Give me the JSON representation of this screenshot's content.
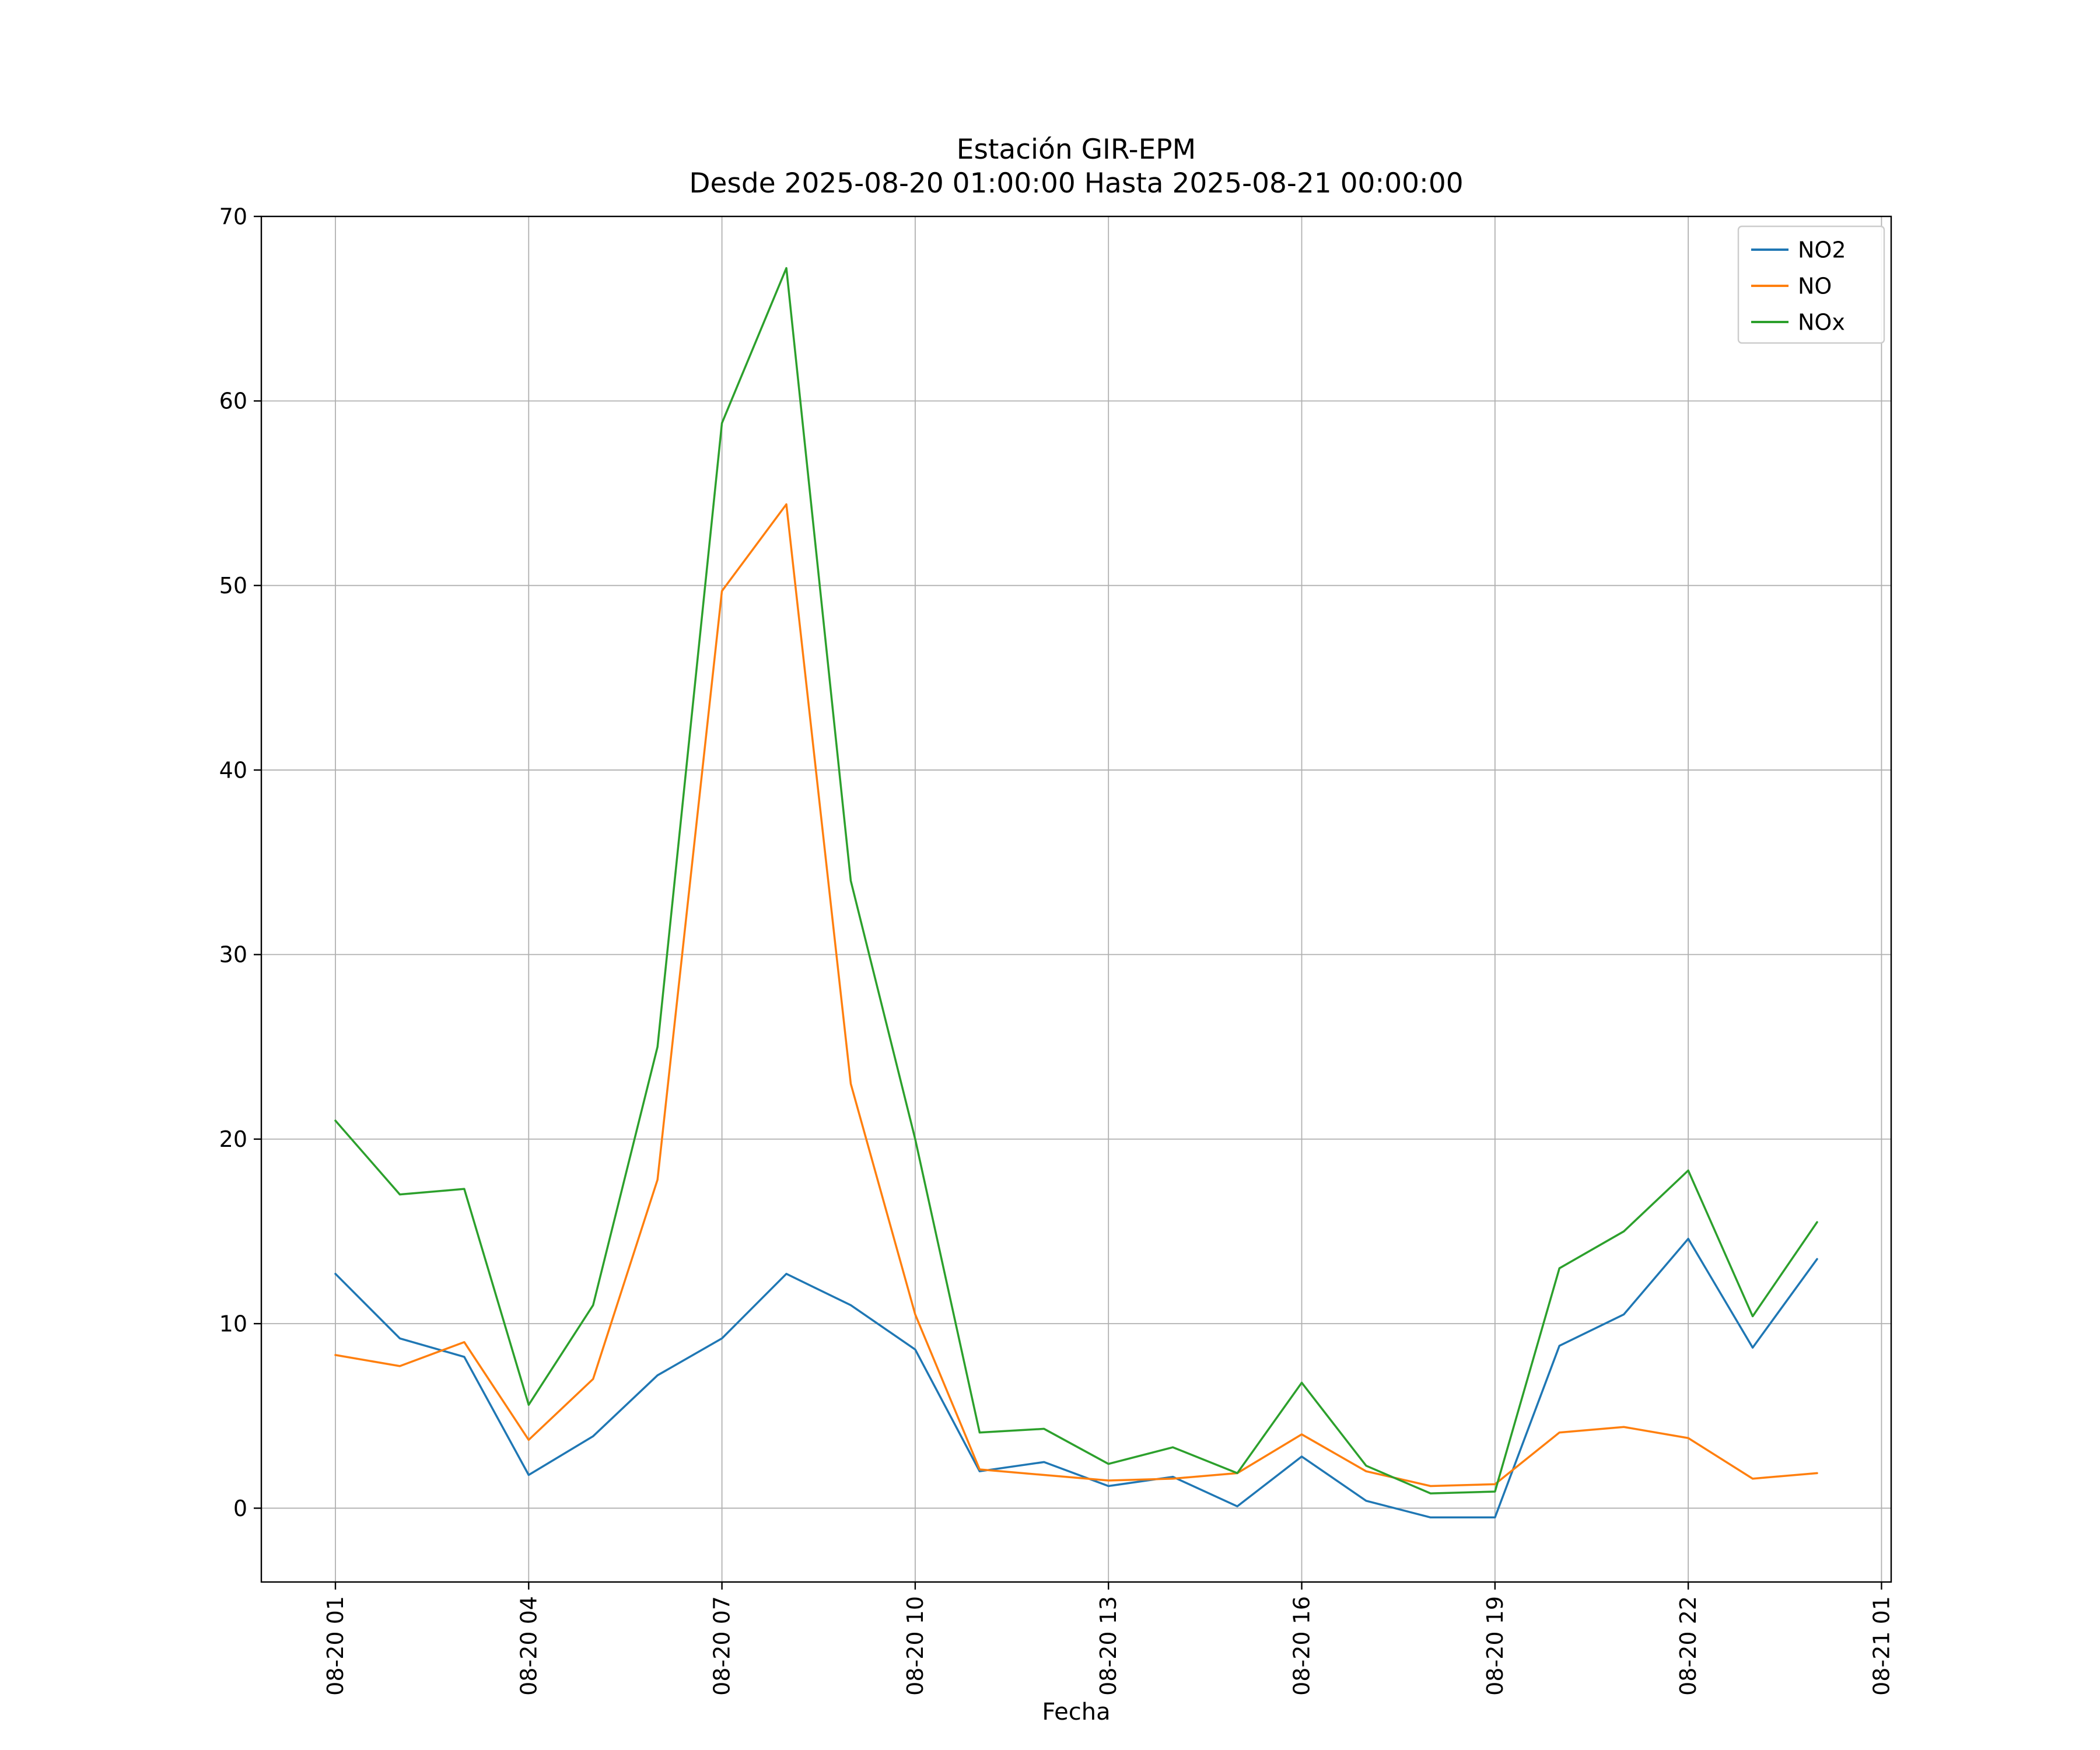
{
  "figure": {
    "title_line1": "Estación GIR-EPM",
    "title_line2": "Desde 2025-08-20 01:00:00 Hasta 2025-08-21 00:00:00",
    "xlabel": "Fecha"
  },
  "chart_data": {
    "type": "line",
    "title": "Estación GIR-EPM",
    "subtitle": "Desde 2025-08-20 01:00:00 Hasta 2025-08-21 00:00:00",
    "xlabel": "Fecha",
    "ylabel": "",
    "grid": true,
    "legend_position": "upper right",
    "grid_color": "#b0b0b0",
    "axis_color": "#000000",
    "xlim": [
      -0.15,
      25.15
    ],
    "ylim": [
      -4.0,
      70.0
    ],
    "x_hours": [
      1,
      2,
      3,
      4,
      5,
      6,
      7,
      8,
      9,
      10,
      11,
      12,
      13,
      14,
      15,
      16,
      17,
      18,
      19,
      20,
      21,
      22,
      23,
      24
    ],
    "series": [
      {
        "name": "NO2",
        "color": "#1f77b4",
        "values": [
          12.7,
          9.2,
          8.2,
          1.8,
          3.9,
          7.2,
          9.2,
          12.7,
          11.0,
          8.6,
          2.0,
          2.5,
          1.2,
          1.7,
          0.1,
          2.8,
          0.4,
          -0.5,
          -0.5,
          8.8,
          10.5,
          14.6,
          8.7,
          13.5
        ]
      },
      {
        "name": "NO",
        "color": "#ff7f0e",
        "values": [
          8.3,
          7.7,
          9.0,
          3.7,
          7.0,
          17.8,
          49.7,
          54.4,
          23.0,
          10.5,
          2.1,
          1.8,
          1.5,
          1.6,
          1.9,
          4.0,
          2.0,
          1.2,
          1.3,
          4.1,
          4.4,
          3.8,
          1.6,
          1.9
        ]
      },
      {
        "name": "NOx",
        "color": "#2ca02c",
        "values": [
          21.0,
          17.0,
          17.3,
          5.6,
          11.0,
          25.0,
          58.8,
          67.2,
          34.0,
          20.0,
          4.1,
          4.3,
          2.4,
          3.3,
          1.9,
          6.8,
          2.3,
          0.8,
          0.9,
          13.0,
          15.0,
          18.3,
          10.4,
          15.5
        ]
      }
    ],
    "xticks": {
      "positions": [
        1,
        4,
        7,
        10,
        13,
        16,
        19,
        22,
        25
      ],
      "labels": [
        "08-20 01",
        "08-20 04",
        "08-20 07",
        "08-20 10",
        "08-20 13",
        "08-20 16",
        "08-20 19",
        "08-20 22",
        "08-21 01"
      ]
    },
    "yticks": [
      0,
      10,
      20,
      30,
      40,
      50,
      60,
      70
    ]
  }
}
